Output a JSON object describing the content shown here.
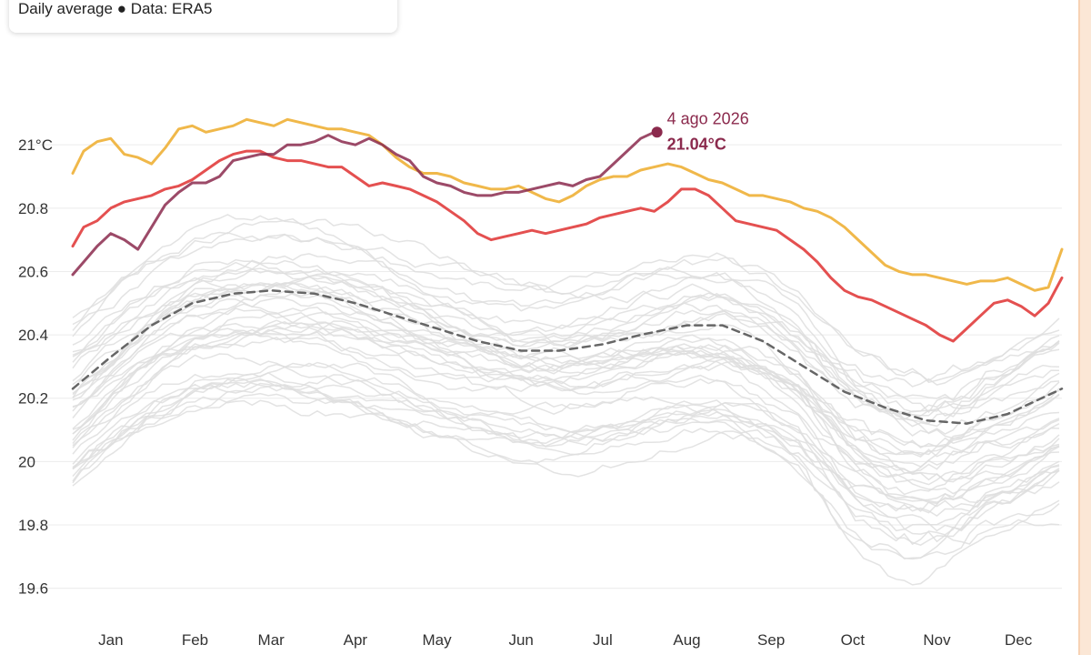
{
  "header": {
    "subtitle_prefix": "Daily average",
    "bullet": "●",
    "subtitle_suffix": "Data: ERA5"
  },
  "colors": {
    "grid": "#ececec",
    "past_years": "#dedede",
    "mean": "#666666",
    "year_gold": "#f0b84a",
    "year_red": "#e45050",
    "current": "#8b2a4d",
    "edge": "#fbe7d6"
  },
  "chart_data": {
    "type": "line",
    "title": "",
    "xlabel": "",
    "ylabel": "",
    "x_unit": "day of year",
    "xlim": [
      1,
      365
    ],
    "ylim": [
      19.55,
      21.17
    ],
    "y_ticks": [
      {
        "value": 21.0,
        "label": "21°C"
      },
      {
        "value": 20.8,
        "label": "20.8"
      },
      {
        "value": 20.6,
        "label": "20.6"
      },
      {
        "value": 20.4,
        "label": "20.4"
      },
      {
        "value": 20.2,
        "label": "20.2"
      },
      {
        "value": 20.0,
        "label": "20"
      },
      {
        "value": 19.8,
        "label": "19.8"
      },
      {
        "value": 19.6,
        "label": "19.6"
      }
    ],
    "x_ticks": [
      {
        "day": 15,
        "label": "Jan"
      },
      {
        "day": 46,
        "label": "Feb"
      },
      {
        "day": 74,
        "label": "Mar"
      },
      {
        "day": 105,
        "label": "Apr"
      },
      {
        "day": 135,
        "label": "May"
      },
      {
        "day": 166,
        "label": "Jun"
      },
      {
        "day": 196,
        "label": "Jul"
      },
      {
        "day": 227,
        "label": "Aug"
      },
      {
        "day": 258,
        "label": "Sep"
      },
      {
        "day": 288,
        "label": "Oct"
      },
      {
        "day": 319,
        "label": "Nov"
      },
      {
        "day": 349,
        "label": "Dec"
      }
    ],
    "grid": true,
    "legend": "none",
    "series": [
      {
        "key": "gold",
        "style": "solid",
        "x": [
          1,
          5,
          10,
          15,
          20,
          25,
          30,
          35,
          40,
          45,
          50,
          55,
          60,
          65,
          70,
          75,
          80,
          85,
          90,
          95,
          100,
          105,
          110,
          115,
          120,
          125,
          130,
          135,
          140,
          145,
          150,
          155,
          160,
          165,
          170,
          175,
          180,
          185,
          190,
          195,
          200,
          205,
          210,
          215,
          220,
          225,
          230,
          235,
          240,
          245,
          250,
          255,
          260,
          265,
          270,
          275,
          280,
          285,
          290,
          295,
          300,
          305,
          310,
          315,
          320,
          325,
          330,
          335,
          340,
          345,
          350,
          355,
          360,
          365
        ],
        "y": [
          20.91,
          20.98,
          21.01,
          21.02,
          20.97,
          20.96,
          20.94,
          20.99,
          21.05,
          21.06,
          21.04,
          21.05,
          21.06,
          21.08,
          21.07,
          21.06,
          21.08,
          21.07,
          21.06,
          21.05,
          21.05,
          21.04,
          21.03,
          21.0,
          20.96,
          20.93,
          20.91,
          20.91,
          20.9,
          20.88,
          20.87,
          20.86,
          20.86,
          20.87,
          20.85,
          20.83,
          20.82,
          20.84,
          20.87,
          20.89,
          20.9,
          20.9,
          20.92,
          20.93,
          20.94,
          20.93,
          20.91,
          20.89,
          20.88,
          20.86,
          20.84,
          20.84,
          20.83,
          20.82,
          20.8,
          20.79,
          20.77,
          20.74,
          20.7,
          20.66,
          20.62,
          20.6,
          20.59,
          20.59,
          20.58,
          20.57,
          20.56,
          20.57,
          20.57,
          20.58,
          20.56,
          20.54,
          20.55,
          20.67
        ]
      },
      {
        "key": "red",
        "style": "solid",
        "x": [
          1,
          5,
          10,
          15,
          20,
          25,
          30,
          35,
          40,
          45,
          50,
          55,
          60,
          65,
          70,
          75,
          80,
          85,
          90,
          95,
          100,
          105,
          110,
          115,
          120,
          125,
          130,
          135,
          140,
          145,
          150,
          155,
          160,
          165,
          170,
          175,
          180,
          185,
          190,
          195,
          200,
          205,
          210,
          215,
          220,
          225,
          230,
          235,
          240,
          245,
          250,
          255,
          260,
          265,
          270,
          275,
          280,
          285,
          290,
          295,
          300,
          305,
          310,
          315,
          320,
          325,
          330,
          335,
          340,
          345,
          350,
          355,
          360,
          365
        ],
        "y": [
          20.68,
          20.74,
          20.76,
          20.8,
          20.82,
          20.83,
          20.84,
          20.86,
          20.87,
          20.89,
          20.92,
          20.95,
          20.97,
          20.98,
          20.98,
          20.96,
          20.95,
          20.95,
          20.94,
          20.93,
          20.93,
          20.9,
          20.87,
          20.88,
          20.87,
          20.86,
          20.84,
          20.82,
          20.79,
          20.76,
          20.72,
          20.7,
          20.71,
          20.72,
          20.73,
          20.72,
          20.73,
          20.74,
          20.75,
          20.77,
          20.78,
          20.79,
          20.8,
          20.79,
          20.82,
          20.86,
          20.86,
          20.84,
          20.8,
          20.76,
          20.75,
          20.74,
          20.73,
          20.7,
          20.67,
          20.63,
          20.58,
          20.54,
          20.52,
          20.51,
          20.49,
          20.47,
          20.45,
          20.43,
          20.4,
          20.38,
          20.42,
          20.46,
          20.5,
          20.51,
          20.49,
          20.46,
          20.5,
          20.58
        ]
      },
      {
        "key": "current",
        "style": "solid",
        "x": [
          1,
          5,
          10,
          15,
          20,
          25,
          30,
          35,
          40,
          45,
          50,
          55,
          60,
          65,
          70,
          75,
          80,
          85,
          90,
          95,
          100,
          105,
          110,
          115,
          120,
          125,
          130,
          135,
          140,
          145,
          150,
          155,
          160,
          165,
          170,
          175,
          180,
          185,
          190,
          195,
          200,
          205,
          210,
          215,
          216
        ],
        "y": [
          20.59,
          20.63,
          20.68,
          20.72,
          20.7,
          20.67,
          20.74,
          20.81,
          20.85,
          20.88,
          20.88,
          20.9,
          20.95,
          20.96,
          20.97,
          20.97,
          21.0,
          21.0,
          21.01,
          21.03,
          21.01,
          21.0,
          21.02,
          21.0,
          20.97,
          20.95,
          20.9,
          20.88,
          20.87,
          20.85,
          20.84,
          20.84,
          20.85,
          20.85,
          20.86,
          20.87,
          20.88,
          20.87,
          20.89,
          20.9,
          20.94,
          20.98,
          21.02,
          21.04,
          21.04
        ]
      },
      {
        "key": "mean",
        "style": "dashed",
        "x": [
          1,
          15,
          30,
          45,
          60,
          74,
          90,
          105,
          120,
          135,
          150,
          166,
          180,
          196,
          210,
          227,
          240,
          255,
          270,
          285,
          300,
          315,
          330,
          345,
          365
        ],
        "y": [
          20.23,
          20.33,
          20.43,
          20.5,
          20.53,
          20.54,
          20.53,
          20.5,
          20.46,
          20.42,
          20.38,
          20.35,
          20.35,
          20.37,
          20.4,
          20.43,
          20.43,
          20.38,
          20.3,
          20.22,
          20.17,
          20.13,
          20.12,
          20.15,
          20.23
        ]
      }
    ],
    "highlight": {
      "series": "current",
      "x": 216,
      "y": 21.04,
      "date_label": "4 ago 2026",
      "value_label": "21.04°C"
    }
  }
}
